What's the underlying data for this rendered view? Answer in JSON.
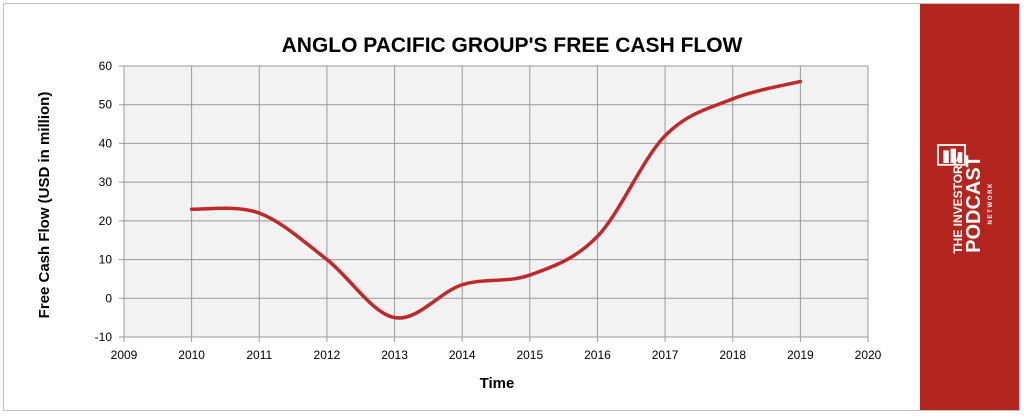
{
  "chart_data": {
    "type": "line",
    "title": "ANGLO PACIFIC GROUP'S FREE CASH FLOW",
    "xlabel": "Time",
    "ylabel": "Free Cash Flow (USD in million)",
    "xlim": [
      2009,
      2020
    ],
    "ylim": [
      -10,
      60
    ],
    "x_ticks": [
      "2009",
      "2010",
      "2011",
      "2012",
      "2013",
      "2014",
      "2015",
      "2016",
      "2017",
      "2018",
      "2019",
      "2020"
    ],
    "y_ticks": [
      "-10",
      "0",
      "10",
      "20",
      "30",
      "40",
      "50",
      "60"
    ],
    "grid": true,
    "series": [
      {
        "color": "#c0282a",
        "x": [
          2010,
          2011,
          2012,
          2013,
          2014,
          2015,
          2016,
          2017,
          2018,
          2019
        ],
        "values": [
          23,
          22,
          10,
          -5,
          3.5,
          6,
          16,
          42,
          51.5,
          56
        ]
      }
    ]
  },
  "logo": {
    "line1": "THE INVESTOR'S",
    "line2": "PODCAST",
    "line3": "N E T W O R K",
    "color": "#b3251f"
  }
}
